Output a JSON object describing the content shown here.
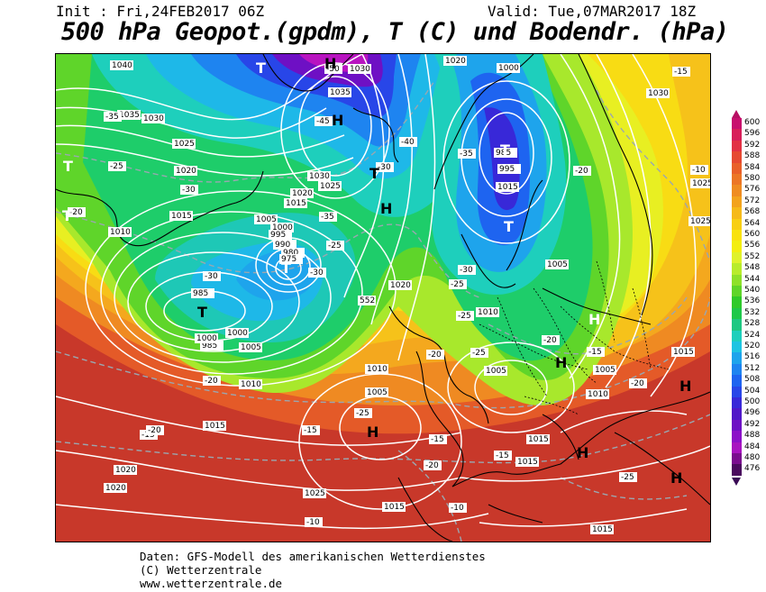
{
  "header": {
    "init": "Init : Fri,24FEB2017 06Z",
    "valid": "Valid: Tue,07MAR2017 18Z",
    "title": "500 hPa Geopot.(gpdm), T (C) und Bodendr. (hPa)"
  },
  "footer": {
    "line1": "Daten: GFS-Modell des amerikanischen Wetterdienstes",
    "line2": "(C) Wetterzentrale",
    "line3": "www.wetterzentrale.de"
  },
  "legend": {
    "labels": [
      "600",
      "596",
      "592",
      "588",
      "584",
      "580",
      "576",
      "572",
      "568",
      "564",
      "560",
      "556",
      "552",
      "548",
      "544",
      "540",
      "536",
      "532",
      "528",
      "524",
      "520",
      "516",
      "512",
      "508",
      "504",
      "500",
      "496",
      "492",
      "488",
      "484",
      "480",
      "476"
    ],
    "colors": [
      "#c8106e",
      "#d81e5a",
      "#e23244",
      "#e64a32",
      "#e9602a",
      "#ec7626",
      "#ef8c22",
      "#f3a31e",
      "#f6ba1a",
      "#f8cf14",
      "#f9e20e",
      "#f3ee10",
      "#dff22c",
      "#b8ec2c",
      "#8ee12a",
      "#5fd52a",
      "#2fca2a",
      "#1ec84a",
      "#1ec882",
      "#1ecfbc",
      "#1ec4e2",
      "#1ea4ec",
      "#1e84f0",
      "#1e64f0",
      "#2846e8",
      "#3828d8",
      "#5018c8",
      "#6e10c4",
      "#8c10c8",
      "#a814c0",
      "#7a0d8e",
      "#4a0a5e"
    ]
  },
  "map": {
    "pressure_labels": [
      "1040",
      "1030",
      "1035",
      "1030",
      "1025",
      "1020",
      "1015",
      "1010",
      "1005",
      "1000",
      "995",
      "990",
      "985",
      "980",
      "975",
      "1030",
      "1035",
      "1030",
      "1025",
      "1020",
      "1015",
      "1010",
      "1005",
      "1000",
      "995",
      "990",
      "985",
      "1000",
      "1005",
      "1010",
      "1015",
      "1020",
      "1025",
      "1020",
      "1015",
      "1010",
      "1005",
      "1000",
      "1030",
      "1020",
      "1025",
      "1015",
      "1020",
      "1025",
      "1015",
      "1020",
      "1010",
      "1005",
      "1015",
      "1005",
      "1010",
      "1015",
      "1020",
      "1015",
      "1005",
      "1000",
      "995",
      "990",
      "985"
    ],
    "temperature_labels": [
      "-50",
      "-45",
      "-40",
      "-35",
      "-30",
      "-25",
      "-20",
      "-15",
      "-10",
      "-35",
      "-40",
      "-30",
      "-25",
      "-20",
      "-15",
      "-30",
      "-25",
      "-20",
      "-35",
      "-30",
      "-25",
      "-20",
      "-15",
      "-10",
      "-25",
      "-30",
      "-25",
      "-20",
      "-15",
      "-20",
      "-15",
      "-10",
      "-20",
      "-15",
      "-25",
      "-20",
      "-20",
      "-15",
      "-10"
    ],
    "systems": [
      "T",
      "T",
      "T",
      "T",
      "T",
      "T",
      "T",
      "T",
      "H",
      "H",
      "H",
      "H",
      "H",
      "H",
      "H",
      "H",
      "H"
    ],
    "special_label": "552"
  }
}
